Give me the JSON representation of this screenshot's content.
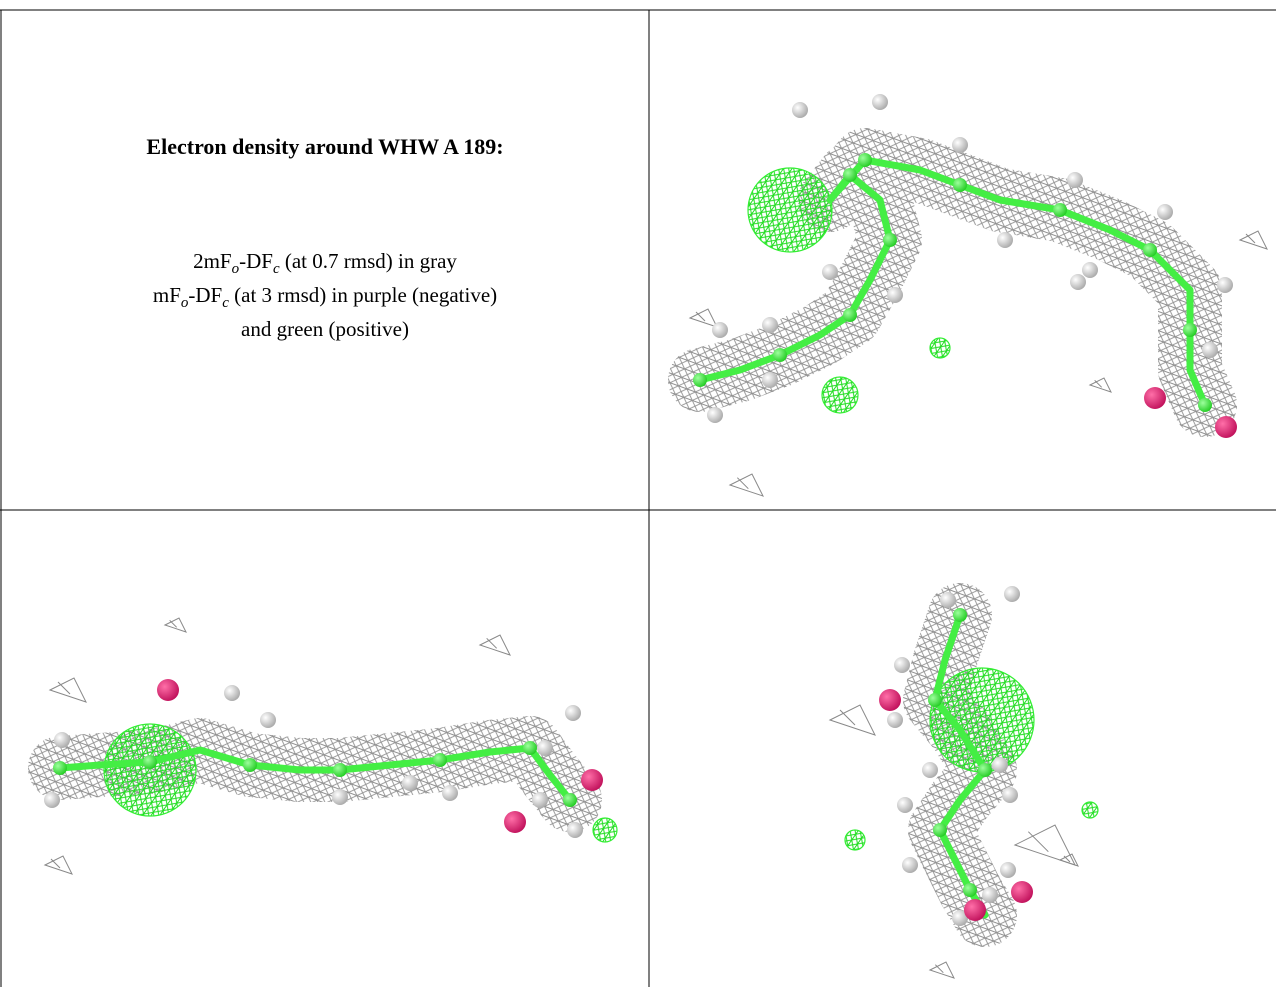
{
  "figure": {
    "title": "Electron density around WHW A 189:",
    "legend_lines": [
      [
        "2mF",
        "o",
        "-DF",
        "c",
        " (at 0.7 rmsd) in gray"
      ],
      [
        "mF",
        "o",
        "-DF",
        "c",
        " (at 3 rmsd) in purple (negative)"
      ],
      [
        "and green (positive)"
      ]
    ]
  }
}
